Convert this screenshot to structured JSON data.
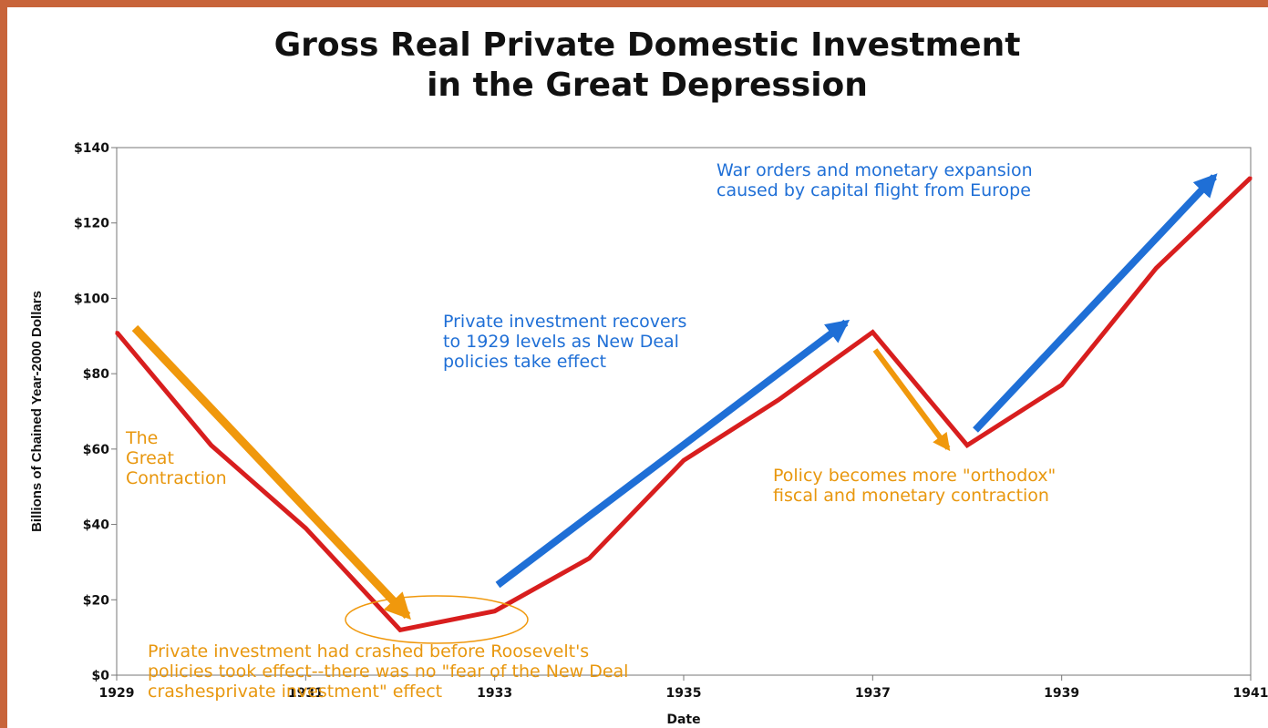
{
  "chart_data": {
    "type": "line",
    "title": "Gross Real Private Domestic Investment in the Great Depression",
    "title_lines": [
      "Gross Real Private Domestic Investment",
      "in the Great Depression"
    ],
    "xlabel": "Date",
    "ylabel": "Billions of Chained Year-2000 Dollars",
    "ylim": [
      0,
      140
    ],
    "xlim": [
      1929,
      1941
    ],
    "x_ticks": [
      1929,
      1931,
      1933,
      1935,
      1937,
      1939,
      1941
    ],
    "y_ticks": [
      0,
      20,
      40,
      60,
      80,
      100,
      120,
      140
    ],
    "y_tick_labels": [
      "$0",
      "$20",
      "$40",
      "$60",
      "$80",
      "$100",
      "$120",
      "$140"
    ],
    "grid": false,
    "series": [
      {
        "color": "#d81e1e",
        "x": [
          1929,
          1930,
          1931,
          1932,
          1933,
          1934,
          1935,
          1936,
          1937,
          1938,
          1939,
          1940,
          1941
        ],
        "values": [
          91,
          61,
          39,
          12,
          17,
          31,
          57,
          73,
          91,
          61,
          77,
          108,
          132
        ]
      }
    ],
    "annotations": {
      "war_orders": "War orders and monetary expansion\ncaused by capital flight from Europe",
      "recovery": "Private investment recovers\nto 1929 levels as New Deal\npolicies take effect",
      "great_contraction": "The\nGreat\nContraction",
      "orthodox": "Policy becomes more \"orthodox\"\nfiscal and monetary contraction",
      "crash_note": "Private investment had crashed before Roosevelt's\npolicies took effect--there was no \"fear of the New Deal\ncrashesprivate investment\" effect"
    },
    "colors": {
      "line": "#d81e1e",
      "blue_arrow": "#1f6fd6",
      "orange_arrow": "#f0980c",
      "frame": "#c8643a"
    }
  }
}
